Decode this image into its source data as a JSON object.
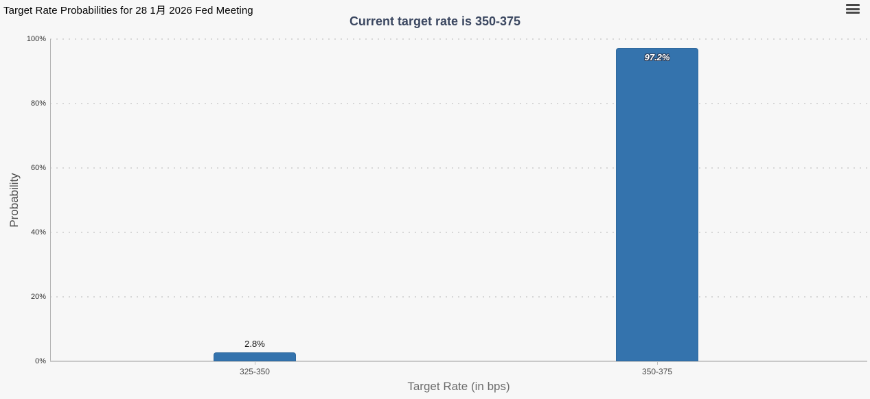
{
  "header": {
    "title": "Target Rate Probabilities for 28 1月 2026 Fed Meeting"
  },
  "icons": {
    "context_menu": "hamburger-menu-icon"
  },
  "chart_data": {
    "type": "bar",
    "title": "Current target rate is 350-375",
    "categories": [
      "325-350",
      "350-375"
    ],
    "values": [
      2.8,
      97.2
    ],
    "data_labels": [
      "2.8%",
      "97.2%"
    ],
    "xlabel": "Target Rate (in bps)",
    "ylabel": "Probability",
    "ylim": [
      0,
      100
    ],
    "yticks": [
      0,
      20,
      40,
      60,
      80,
      100
    ],
    "ytick_labels": [
      "0%",
      "20%",
      "40%",
      "60%",
      "80%",
      "100%"
    ],
    "grid": "horizontal-dotted",
    "legend": "none",
    "colors": {
      "bar": "#3473ad",
      "title": "#3b4760",
      "background": "#f7f7f7",
      "label_inside": "#ffffff",
      "label_inside_outline": "#2a3c58",
      "label_outside": "#111111"
    }
  }
}
